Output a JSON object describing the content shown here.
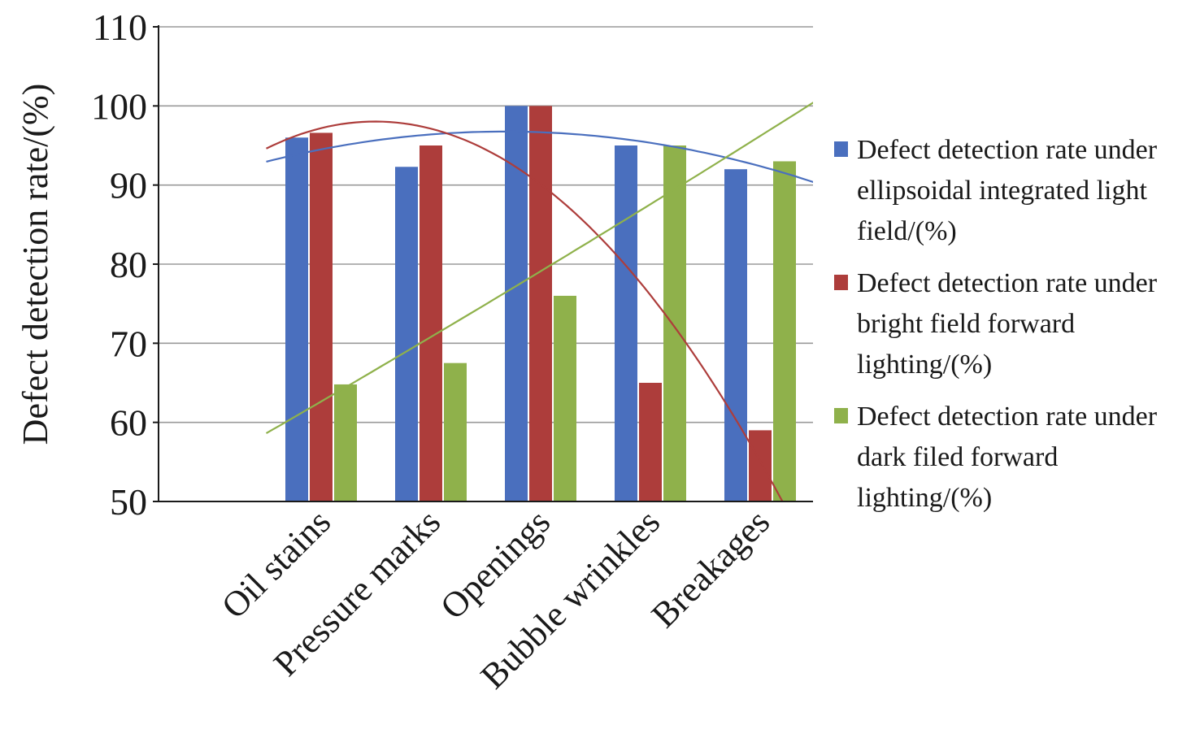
{
  "chart_data": {
    "type": "bar",
    "title": "",
    "xlabel": "",
    "ylabel": "Defect detection rate/(%)",
    "ylim": [
      50,
      110
    ],
    "yticks": [
      "50",
      "60",
      "70",
      "80",
      "90",
      "100",
      "110"
    ],
    "grid": "horizontal",
    "legend_position": "right",
    "categories": [
      "Oil stains",
      "Pressure marks",
      "Openings",
      "Bubble wrinkles",
      "Breakages"
    ],
    "series": [
      {
        "name": "Defect detection rate under ellipsoidal integrated light field/(%)",
        "values": [
          96,
          92.3,
          100,
          95,
          92
        ],
        "color": "#4a6fbe"
      },
      {
        "name": "Defect detection rate under bright field forward lighting/(%)",
        "values": [
          96.6,
          95,
          100,
          65,
          59
        ],
        "color": "#ad3d3b"
      },
      {
        "name": "Defect detection rate under dark filed forward lighting/(%)",
        "values": [
          64.8,
          67.5,
          76,
          95,
          93
        ],
        "color": "#8fb14b"
      }
    ],
    "trendlines": [
      {
        "series": "Defect detection rate under ellipsoidal integrated light field/(%)",
        "color": "#4a6fbe"
      },
      {
        "series": "Defect detection rate under bright field forward lighting/(%)",
        "color": "#ad3d3b"
      },
      {
        "series": "Defect detection rate under dark filed forward lighting/(%)",
        "color": "#8fb14b"
      }
    ]
  }
}
